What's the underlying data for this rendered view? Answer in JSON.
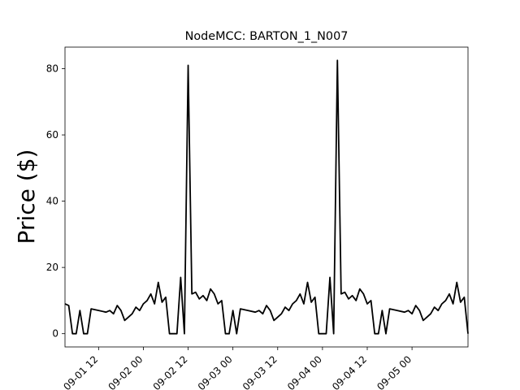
{
  "chart_data": {
    "type": "line",
    "title": "NodeMCC: BARTON_1_N007",
    "xlabel": "",
    "ylabel": "Price ($)",
    "x_type": "datetime",
    "xlim": [
      "09-01 03:00",
      "09-05 15:00"
    ],
    "ylim": [
      -4,
      86.5
    ],
    "grid": false,
    "legend": "none",
    "line_color": "#000000",
    "x_ticks": [
      "09-01 12",
      "09-02 00",
      "09-02 12",
      "09-03 00",
      "09-03 12",
      "09-04 00",
      "09-04 12",
      "09-05 00"
    ],
    "y_ticks": [
      0,
      20,
      40,
      60,
      80
    ],
    "series": [
      {
        "name": "",
        "points": [
          [
            "09-01 03:00",
            9
          ],
          [
            "09-01 04:00",
            8.5
          ],
          [
            "09-01 05:00",
            0
          ],
          [
            "09-01 06:00",
            0
          ],
          [
            "09-01 07:00",
            7
          ],
          [
            "09-01 08:00",
            0
          ],
          [
            "09-01 09:00",
            0
          ],
          [
            "09-01 10:00",
            7.5
          ],
          [
            "09-01 12:00",
            7
          ],
          [
            "09-01 14:00",
            6.5
          ],
          [
            "09-01 15:00",
            7
          ],
          [
            "09-01 16:00",
            6
          ],
          [
            "09-01 17:00",
            8.5
          ],
          [
            "09-01 18:00",
            7
          ],
          [
            "09-01 19:00",
            4
          ],
          [
            "09-01 20:00",
            5
          ],
          [
            "09-01 21:00",
            6
          ],
          [
            "09-01 22:00",
            8
          ],
          [
            "09-01 23:00",
            7
          ],
          [
            "09-02 00:00",
            9
          ],
          [
            "09-02 01:00",
            10
          ],
          [
            "09-02 02:00",
            12
          ],
          [
            "09-02 03:00",
            9
          ],
          [
            "09-02 04:00",
            15.5
          ],
          [
            "09-02 05:00",
            9.5
          ],
          [
            "09-02 06:00",
            11
          ],
          [
            "09-02 07:00",
            0
          ],
          [
            "09-02 08:00",
            0
          ],
          [
            "09-02 09:00",
            0
          ],
          [
            "09-02 10:00",
            17
          ],
          [
            "09-02 11:00",
            0
          ],
          [
            "09-02 12:00",
            81
          ],
          [
            "09-02 13:00",
            12
          ],
          [
            "09-02 14:00",
            12.5
          ],
          [
            "09-02 15:00",
            10.5
          ],
          [
            "09-02 16:00",
            11.5
          ],
          [
            "09-02 17:00",
            10
          ],
          [
            "09-02 18:00",
            13.5
          ],
          [
            "09-02 19:00",
            12
          ],
          [
            "09-02 20:00",
            9
          ],
          [
            "09-02 21:00",
            10
          ],
          [
            "09-02 22:00",
            0
          ],
          [
            "09-02 23:00",
            0
          ],
          [
            "09-03 00:00",
            7
          ],
          [
            "09-03 01:00",
            0
          ],
          [
            "09-03 02:00",
            7.5
          ],
          [
            "09-03 04:00",
            7
          ],
          [
            "09-03 06:00",
            6.5
          ],
          [
            "09-03 07:00",
            7
          ],
          [
            "09-03 08:00",
            6
          ],
          [
            "09-03 09:00",
            8.5
          ],
          [
            "09-03 10:00",
            7
          ],
          [
            "09-03 11:00",
            4
          ],
          [
            "09-03 12:00",
            5
          ],
          [
            "09-03 13:00",
            6
          ],
          [
            "09-03 14:00",
            8
          ],
          [
            "09-03 15:00",
            7
          ],
          [
            "09-03 16:00",
            9
          ],
          [
            "09-03 17:00",
            10
          ],
          [
            "09-03 18:00",
            12
          ],
          [
            "09-03 19:00",
            9
          ],
          [
            "09-03 20:00",
            15.5
          ],
          [
            "09-03 21:00",
            9.5
          ],
          [
            "09-03 22:00",
            11
          ],
          [
            "09-03 23:00",
            0
          ],
          [
            "09-04 00:00",
            0
          ],
          [
            "09-04 01:00",
            0
          ],
          [
            "09-04 02:00",
            17
          ],
          [
            "09-04 03:00",
            0
          ],
          [
            "09-04 04:00",
            82.5
          ],
          [
            "09-04 05:00",
            12
          ],
          [
            "09-04 06:00",
            12.5
          ],
          [
            "09-04 07:00",
            10.5
          ],
          [
            "09-04 08:00",
            11.5
          ],
          [
            "09-04 09:00",
            10
          ],
          [
            "09-04 10:00",
            13.5
          ],
          [
            "09-04 11:00",
            12
          ],
          [
            "09-04 12:00",
            9
          ],
          [
            "09-04 13:00",
            10
          ],
          [
            "09-04 14:00",
            0
          ],
          [
            "09-04 15:00",
            0
          ],
          [
            "09-04 16:00",
            7
          ],
          [
            "09-04 17:00",
            0
          ],
          [
            "09-04 18:00",
            7.5
          ],
          [
            "09-04 20:00",
            7
          ],
          [
            "09-04 22:00",
            6.5
          ],
          [
            "09-04 23:00",
            7
          ],
          [
            "09-05 00:00",
            6
          ],
          [
            "09-05 01:00",
            8.5
          ],
          [
            "09-05 02:00",
            7
          ],
          [
            "09-05 03:00",
            4
          ],
          [
            "09-05 04:00",
            5
          ],
          [
            "09-05 05:00",
            6
          ],
          [
            "09-05 06:00",
            8
          ],
          [
            "09-05 07:00",
            7
          ],
          [
            "09-05 08:00",
            9
          ],
          [
            "09-05 09:00",
            10
          ],
          [
            "09-05 10:00",
            12
          ],
          [
            "09-05 11:00",
            9
          ],
          [
            "09-05 12:00",
            15.5
          ],
          [
            "09-05 13:00",
            9.5
          ],
          [
            "09-05 14:00",
            11
          ],
          [
            "09-05 15:00",
            0
          ]
        ]
      }
    ]
  }
}
